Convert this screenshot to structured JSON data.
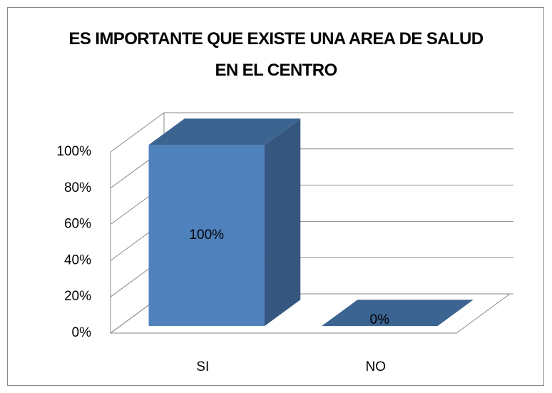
{
  "chart_data": {
    "type": "bar3d",
    "title": "ES IMPORTANTE QUE EXISTE UNA AREA DE SALUD EN EL CENTRO",
    "categories": [
      "SI",
      "NO"
    ],
    "values": [
      100,
      0
    ],
    "value_labels": [
      "100%",
      "0%"
    ],
    "color": "#4f81bd",
    "ylim": [
      0,
      100
    ],
    "yticks": [
      {
        "value": 0,
        "label": "0%"
      },
      {
        "value": 20,
        "label": "20%"
      },
      {
        "value": 40,
        "label": "40%"
      },
      {
        "value": 60,
        "label": "60%"
      },
      {
        "value": 80,
        "label": "80%"
      },
      {
        "value": 100,
        "label": "100%"
      }
    ],
    "grid": true
  }
}
